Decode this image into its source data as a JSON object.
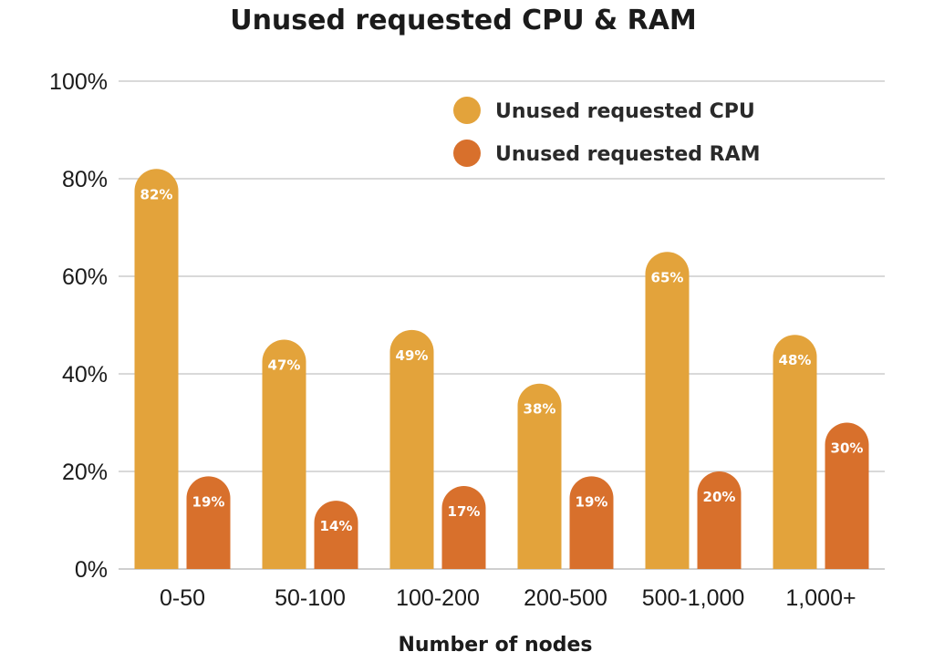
{
  "chart_data": {
    "type": "bar",
    "title": "Unused requested CPU & RAM",
    "xlabel": "Number of nodes",
    "ylabel": "",
    "categories": [
      "0-50",
      "50-100",
      "100-200",
      "200-500",
      "500-1,000",
      "1,000+"
    ],
    "series": [
      {
        "name": "Unused requested CPU",
        "color": "#E3A33B",
        "values": [
          82,
          47,
          49,
          38,
          65,
          48
        ],
        "labels": [
          "82%",
          "47%",
          "49%",
          "38%",
          "65%",
          "48%"
        ]
      },
      {
        "name": "Unused requested RAM",
        "color": "#D8702C",
        "values": [
          19,
          14,
          17,
          19,
          20,
          30
        ],
        "labels": [
          "19%",
          "14%",
          "17%",
          "19%",
          "20%",
          "30%"
        ]
      }
    ],
    "ylim": [
      0,
      100
    ],
    "yticks": [
      0,
      20,
      40,
      60,
      80,
      100
    ],
    "ytick_labels": [
      "0%",
      "20%",
      "40%",
      "60%",
      "80%",
      "100%"
    ],
    "grid": true,
    "legend_position": "top-right"
  }
}
